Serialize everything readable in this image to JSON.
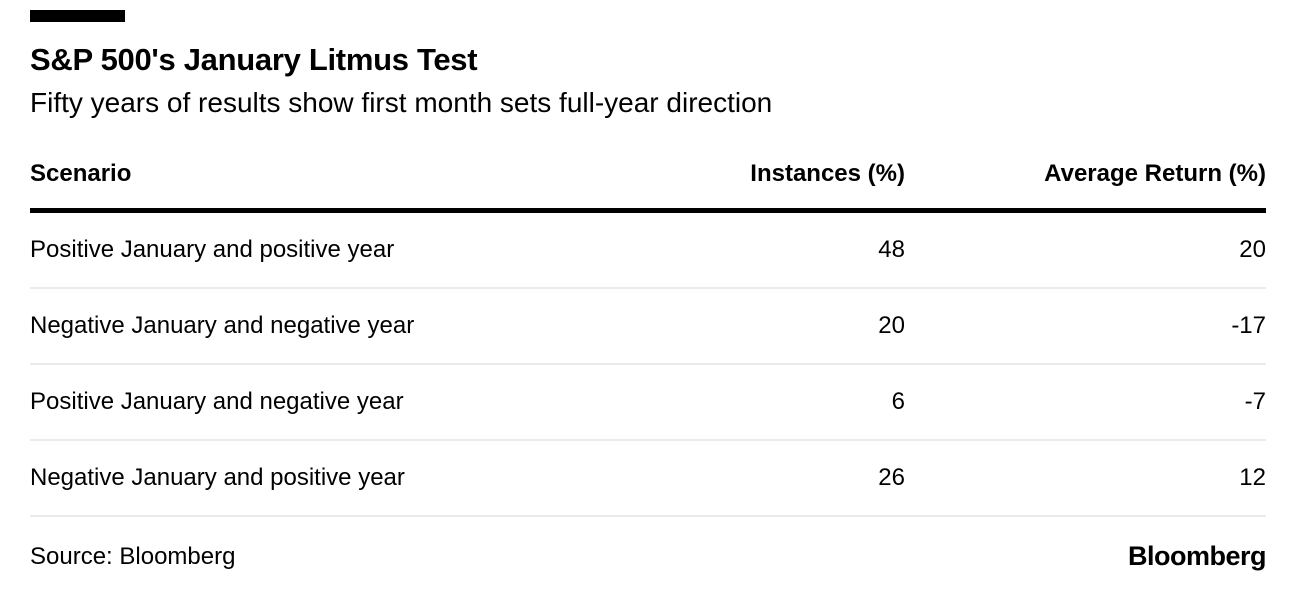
{
  "colors": {
    "background": "#ffffff",
    "text": "#000000",
    "accent_bar": "#000000",
    "header_rule": "#000000",
    "row_divider": "#ebebeb"
  },
  "header": {
    "title": "S&P 500's January Litmus Test",
    "subtitle": "Fifty years of results show first month sets full-year direction"
  },
  "table": {
    "columns": [
      {
        "label": "Scenario",
        "align": "left"
      },
      {
        "label": "Instances (%)",
        "align": "right"
      },
      {
        "label": "Average Return (%)",
        "align": "right"
      }
    ],
    "rows": [
      {
        "scenario": "Positive January and positive year",
        "instances": "48",
        "avg_return": "20"
      },
      {
        "scenario": "Negative January and negative year",
        "instances": "20",
        "avg_return": "-17"
      },
      {
        "scenario": "Positive January and negative year",
        "instances": "6",
        "avg_return": "-7"
      },
      {
        "scenario": "Negative January and positive year",
        "instances": "26",
        "avg_return": "12"
      }
    ]
  },
  "footer": {
    "source": "Source: Bloomberg",
    "brand": "Bloomberg"
  },
  "chart_data": {
    "type": "table",
    "title": "S&P 500's January Litmus Test",
    "subtitle": "Fifty years of results show first month sets full-year direction",
    "columns": [
      "Scenario",
      "Instances (%)",
      "Average Return (%)"
    ],
    "rows": [
      [
        "Positive January and positive year",
        48,
        20
      ],
      [
        "Negative January and negative year",
        20,
        -17
      ],
      [
        "Positive January and negative year",
        6,
        -7
      ],
      [
        "Negative January and positive year",
        26,
        12
      ]
    ],
    "source": "Bloomberg",
    "layout": {
      "grid": false,
      "legend": "none",
      "numeric_columns_align": "right"
    }
  }
}
